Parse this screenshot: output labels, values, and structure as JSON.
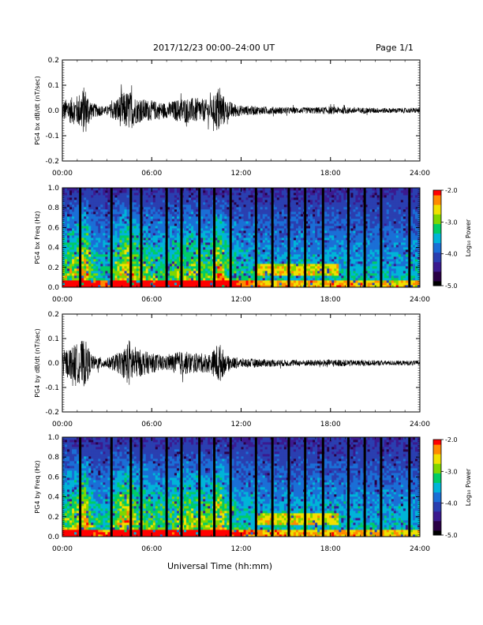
{
  "header": {
    "title": "2017/12/23  00:00–24:00 UT",
    "page": "Page 1/1"
  },
  "x_axis_title": "Universal Time (hh:mm)",
  "colors": {
    "waveform": "#000000",
    "colormap": [
      "#000000",
      "#2a0045",
      "#3b1a8f",
      "#2a3fb0",
      "#1a6fd6",
      "#00b4d8",
      "#00cc66",
      "#7fd600",
      "#f0e000",
      "#ff8a00",
      "#ff0000"
    ]
  },
  "colorbar": {
    "label": "Log₁₀ Power",
    "ticks": [
      "-2.0",
      "-3.0",
      "-4.0",
      "-5.0"
    ]
  },
  "chart_data": [
    {
      "id": "bx_wave",
      "type": "line",
      "ylabel": "PG4 bx dB/dt (nT/sec)",
      "xlim": [
        0,
        24
      ],
      "ylim": [
        -0.2,
        0.2
      ],
      "xticks": [
        "00:00",
        "06:00",
        "12:00",
        "18:00",
        "24:00"
      ],
      "yticks": [
        "0.2",
        "0.1",
        "0.0",
        "-0.1",
        "-0.2"
      ],
      "envelope_hours": [
        0,
        1,
        1.5,
        2,
        3,
        4,
        4.5,
        5,
        6,
        7,
        8,
        9,
        10,
        10.5,
        11,
        12,
        14,
        16,
        18,
        20,
        22,
        24
      ],
      "envelope_amplitude": [
        0.04,
        0.06,
        0.1,
        0.03,
        0.015,
        0.07,
        0.08,
        0.05,
        0.04,
        0.03,
        0.05,
        0.05,
        0.04,
        0.1,
        0.04,
        0.02,
        0.015,
        0.012,
        0.015,
        0.012,
        0.01,
        0.01
      ]
    },
    {
      "id": "bx_spec",
      "type": "heatmap",
      "ylabel": "PG4 bx Freq (Hz)",
      "xlim": [
        0,
        24
      ],
      "ylim": [
        0,
        1.0
      ],
      "xticks": [
        "00:00",
        "06:00",
        "12:00",
        "18:00",
        "24:00"
      ],
      "yticks": [
        "1.0",
        "0.8",
        "0.6",
        "0.4",
        "0.2",
        "0.0"
      ],
      "zlim": [
        -5.0,
        -2.0
      ],
      "data_gap_hours": [
        1.2,
        3.3,
        4.6,
        5.3,
        7.0,
        8.0,
        9.2,
        10.2,
        11.3,
        13.0,
        14.1,
        15.2,
        16.3,
        17.5,
        19.2,
        20.3,
        21.4,
        23.3
      ],
      "band_feature": {
        "hours": [
          13,
          18.5
        ],
        "freq_hz": 0.18
      }
    },
    {
      "id": "by_wave",
      "type": "line",
      "ylabel": "PG4 by dB/dt (nT/sec)",
      "xlim": [
        0,
        24
      ],
      "ylim": [
        -0.2,
        0.2
      ],
      "xticks": [
        "00:00",
        "06:00",
        "12:00",
        "18:00",
        "24:00"
      ],
      "yticks": [
        "0.2",
        "0.1",
        "0.0",
        "-0.1",
        "-0.2"
      ],
      "envelope_hours": [
        0,
        1,
        1.5,
        2,
        3,
        4,
        4.5,
        5,
        6,
        7,
        8,
        9,
        10,
        10.5,
        11,
        12,
        14,
        16,
        18,
        20,
        22,
        24
      ],
      "envelope_amplitude": [
        0.05,
        0.08,
        0.1,
        0.03,
        0.02,
        0.05,
        0.1,
        0.06,
        0.04,
        0.03,
        0.05,
        0.04,
        0.04,
        0.09,
        0.03,
        0.02,
        0.015,
        0.012,
        0.015,
        0.012,
        0.01,
        0.01
      ]
    },
    {
      "id": "by_spec",
      "type": "heatmap",
      "ylabel": "PG4 by Freq (Hz)",
      "xlim": [
        0,
        24
      ],
      "ylim": [
        0,
        1.0
      ],
      "xticks": [
        "00:00",
        "06:00",
        "12:00",
        "18:00",
        "24:00"
      ],
      "yticks": [
        "1.0",
        "0.8",
        "0.6",
        "0.4",
        "0.2",
        "0.0"
      ],
      "zlim": [
        -5.0,
        -2.0
      ],
      "data_gap_hours": [
        1.2,
        3.3,
        4.6,
        5.3,
        7.0,
        8.0,
        9.2,
        10.2,
        11.3,
        13.0,
        14.1,
        15.2,
        16.3,
        17.5,
        19.2,
        20.3,
        21.4,
        23.3
      ],
      "band_feature": {
        "hours": [
          13,
          18.5
        ],
        "freq_hz": 0.17
      }
    }
  ]
}
